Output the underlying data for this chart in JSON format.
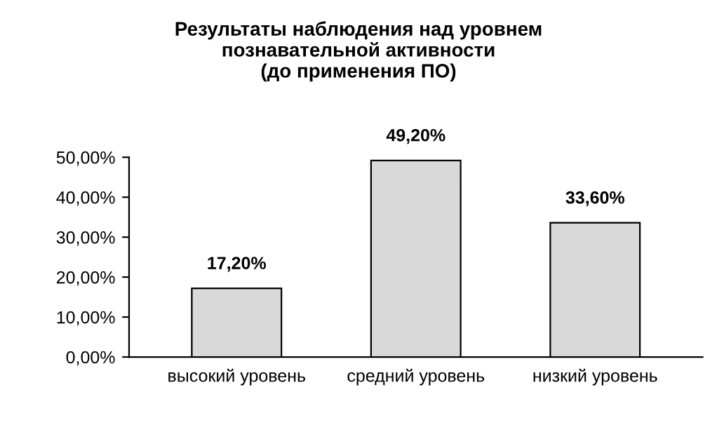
{
  "chart_data": {
    "type": "bar",
    "title": "Результаты наблюдения над уровнем\nпознавательной активности\n(до применения ПО)",
    "categories": [
      "высокий уровень",
      "средний уровень",
      "низкий уровень"
    ],
    "values": [
      17.2,
      49.2,
      33.6
    ],
    "value_labels": [
      "17,20%",
      "49,20%",
      "33,60%"
    ],
    "color": "#d9d9d9",
    "ylim": [
      0,
      50
    ],
    "yticks": [
      {
        "value": 0,
        "label": "0,00%"
      },
      {
        "value": 10,
        "label": "10,00%"
      },
      {
        "value": 20,
        "label": "20,00%"
      },
      {
        "value": 30,
        "label": "30,00%"
      },
      {
        "value": 40,
        "label": "40,00%"
      },
      {
        "value": 50,
        "label": "50,00%"
      }
    ],
    "grid": false,
    "legend": false
  }
}
